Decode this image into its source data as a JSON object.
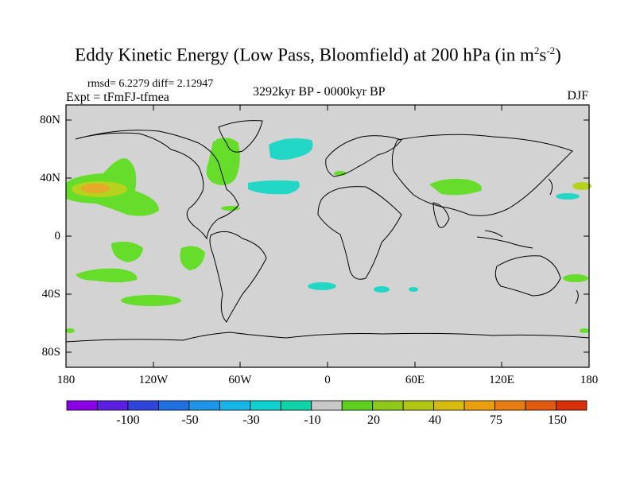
{
  "title": {
    "main": "Eddy Kinetic Energy (Low Pass, Bloomfield) at 200 hPa (in m",
    "sup1": "2",
    "mid": "s",
    "sup2": "-2",
    "end": ")"
  },
  "stats": "rmsd= 6.2279 diff= 2.12947",
  "experiment": "Expt = tFmFJ-tfmea",
  "period": "3292kyr BP - 0000kyr BP",
  "season": "DJF",
  "lat_labels": [
    "80N",
    "40N",
    "0",
    "40S",
    "80S"
  ],
  "lon_labels": [
    "180",
    "120W",
    "60W",
    "0",
    "60E",
    "120E",
    "180"
  ],
  "colorbar": {
    "labels": [
      "-100",
      "-50",
      "-30",
      "-10",
      "20",
      "40",
      "75",
      "150"
    ],
    "colors": [
      "#8a00e6",
      "#5a1fe0",
      "#2f44d8",
      "#1f6fe0",
      "#1e95e6",
      "#18b6e6",
      "#10d0d0",
      "#10d4a8",
      "#c8c8c8",
      "#5fd020",
      "#8ec81a",
      "#b2c414",
      "#d6bc10",
      "#e8a010",
      "#e67d12",
      "#e05a10",
      "#d8300c"
    ]
  },
  "colors": {
    "land_ocean": "#d3d3d3",
    "positive_low": "#66dd2a",
    "positive_mid": "#b6d21c",
    "positive_high": "#e6a92a",
    "negative_low": "#22d7c6"
  }
}
